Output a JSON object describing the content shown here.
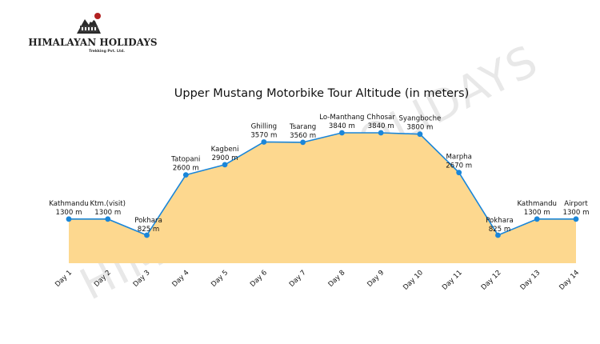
{
  "logo": {
    "wordmark": "HIMALAYAN HOLIDAYS",
    "subtext": "Trekking Pvt. Ltd."
  },
  "watermark": "HIMALAYAN HOLIDAYS",
  "colors": {
    "line": "#1a86d9",
    "fill": "#fdd88f",
    "marker": "#1a86d9"
  },
  "chart_data": {
    "type": "area",
    "title": "Upper Mustang Motorbike Tour Altitude (in meters)",
    "xlabel": "",
    "ylabel": "",
    "categories": [
      "Day 1",
      "Day 2",
      "Day 3",
      "Day 4",
      "Day 5",
      "Day 6",
      "Day 7",
      "Day 8",
      "Day 9",
      "Day 10",
      "Day 11",
      "Day 12",
      "Day 13",
      "Day 14"
    ],
    "series": [
      {
        "values": [
          1300,
          1300,
          825,
          2600,
          2900,
          3570,
          3560,
          3840,
          3840,
          3800,
          2670,
          825,
          1300,
          1300
        ],
        "place_names": [
          "Kathmandu",
          "Ktm.(visit)",
          "Pokhara",
          "Tatopani",
          "Kagbeni",
          "Ghilling",
          "Tsarang",
          "Lo-Manthang",
          "Chhosar",
          "Syangboche",
          "Marpha",
          "Pokhara",
          "Kathmandu",
          "Airport"
        ],
        "value_labels": [
          "1300 m",
          "1300 m",
          "825 m",
          "2600 m",
          "2900 m",
          "3570 m",
          "3560 m",
          "3840 m",
          "3840 m",
          "3800 m",
          "2670 m",
          "825 m",
          "1300 m",
          "1300 m"
        ]
      }
    ],
    "grid": false,
    "legend": "none",
    "ylim": [
      0,
      3840
    ]
  }
}
